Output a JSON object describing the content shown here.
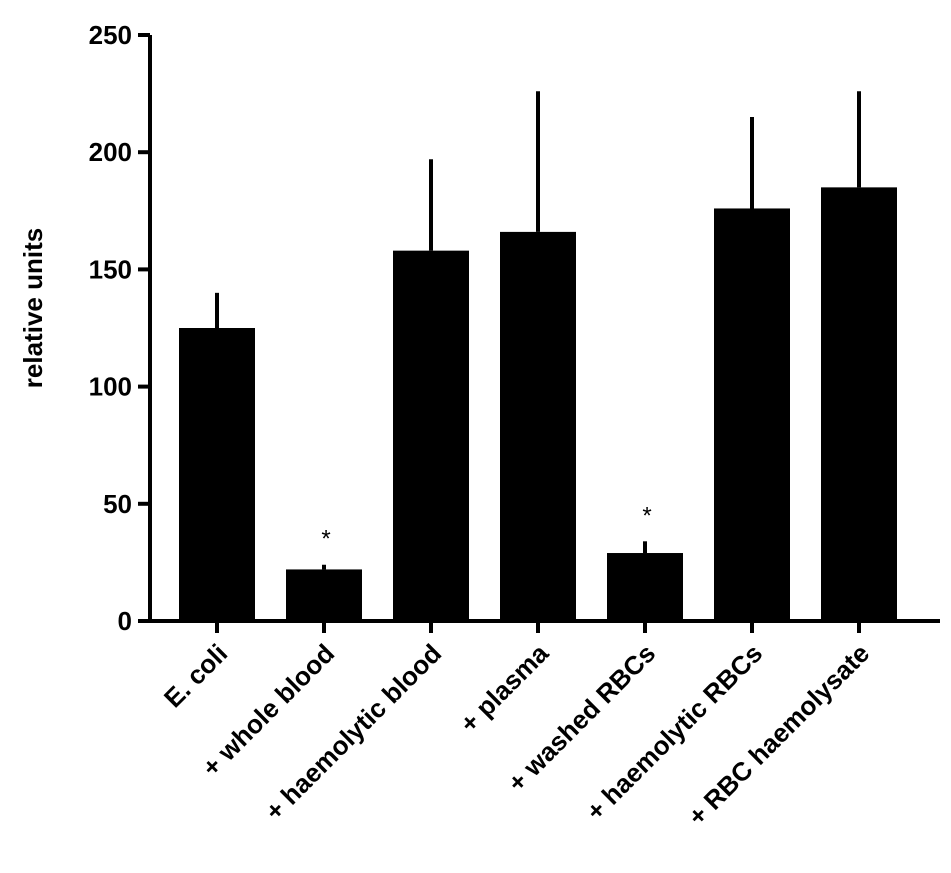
{
  "chart_data": {
    "type": "bar",
    "title": "",
    "xlabel": "",
    "ylabel": "relative units",
    "ylim": [
      0,
      250
    ],
    "yticks": [
      0,
      50,
      100,
      150,
      200,
      250
    ],
    "grid": false,
    "legend": "none",
    "bar_color": "#000000",
    "categories": [
      "E. coli",
      "+ whole blood",
      "+ haemolytic blood",
      "+ plasma",
      "+ washed RBCs",
      "+ haemolytic RBCs",
      "+ RBC haemolysate"
    ],
    "values": [
      125,
      22,
      158,
      166,
      29,
      176,
      185
    ],
    "error_upper": [
      140,
      24,
      197,
      226,
      34,
      215,
      226
    ],
    "annotations": [
      "",
      "*",
      "",
      "",
      "*",
      "",
      ""
    ]
  }
}
